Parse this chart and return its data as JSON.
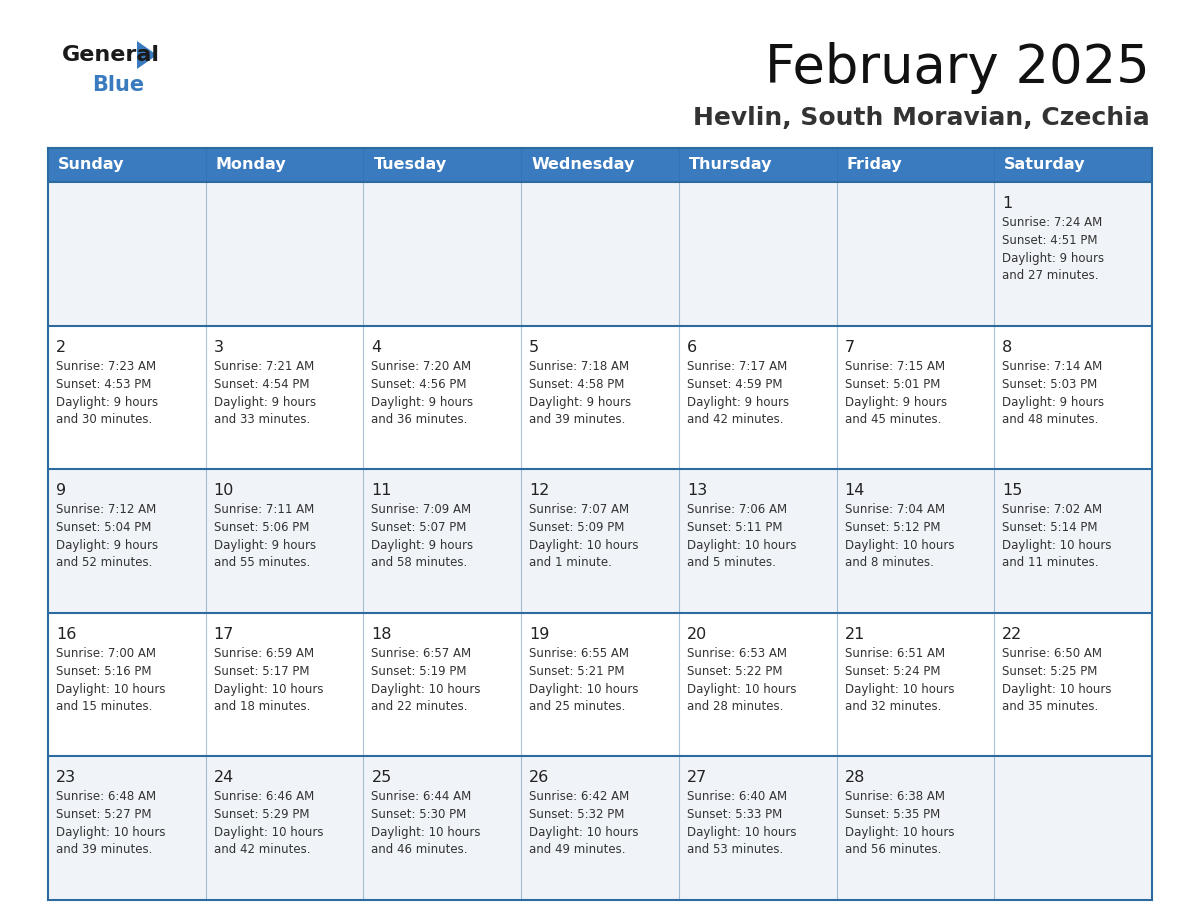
{
  "title": "February 2025",
  "subtitle": "Hevlin, South Moravian, Czechia",
  "days_of_week": [
    "Sunday",
    "Monday",
    "Tuesday",
    "Wednesday",
    "Thursday",
    "Friday",
    "Saturday"
  ],
  "header_bg": "#3a7bbf",
  "header_text": "#ffffff",
  "cell_bg_even": "#f0f4f8",
  "cell_bg_odd": "#ffffff",
  "border_color": "#2d6aa0",
  "text_color": "#333333",
  "calendar": [
    [
      null,
      null,
      null,
      null,
      null,
      null,
      {
        "day": "1",
        "sunrise": "7:24 AM",
        "sunset": "4:51 PM",
        "daylight": "9 hours\nand 27 minutes."
      }
    ],
    [
      {
        "day": "2",
        "sunrise": "7:23 AM",
        "sunset": "4:53 PM",
        "daylight": "9 hours\nand 30 minutes."
      },
      {
        "day": "3",
        "sunrise": "7:21 AM",
        "sunset": "4:54 PM",
        "daylight": "9 hours\nand 33 minutes."
      },
      {
        "day": "4",
        "sunrise": "7:20 AM",
        "sunset": "4:56 PM",
        "daylight": "9 hours\nand 36 minutes."
      },
      {
        "day": "5",
        "sunrise": "7:18 AM",
        "sunset": "4:58 PM",
        "daylight": "9 hours\nand 39 minutes."
      },
      {
        "day": "6",
        "sunrise": "7:17 AM",
        "sunset": "4:59 PM",
        "daylight": "9 hours\nand 42 minutes."
      },
      {
        "day": "7",
        "sunrise": "7:15 AM",
        "sunset": "5:01 PM",
        "daylight": "9 hours\nand 45 minutes."
      },
      {
        "day": "8",
        "sunrise": "7:14 AM",
        "sunset": "5:03 PM",
        "daylight": "9 hours\nand 48 minutes."
      }
    ],
    [
      {
        "day": "9",
        "sunrise": "7:12 AM",
        "sunset": "5:04 PM",
        "daylight": "9 hours\nand 52 minutes."
      },
      {
        "day": "10",
        "sunrise": "7:11 AM",
        "sunset": "5:06 PM",
        "daylight": "9 hours\nand 55 minutes."
      },
      {
        "day": "11",
        "sunrise": "7:09 AM",
        "sunset": "5:07 PM",
        "daylight": "9 hours\nand 58 minutes."
      },
      {
        "day": "12",
        "sunrise": "7:07 AM",
        "sunset": "5:09 PM",
        "daylight": "10 hours\nand 1 minute."
      },
      {
        "day": "13",
        "sunrise": "7:06 AM",
        "sunset": "5:11 PM",
        "daylight": "10 hours\nand 5 minutes."
      },
      {
        "day": "14",
        "sunrise": "7:04 AM",
        "sunset": "5:12 PM",
        "daylight": "10 hours\nand 8 minutes."
      },
      {
        "day": "15",
        "sunrise": "7:02 AM",
        "sunset": "5:14 PM",
        "daylight": "10 hours\nand 11 minutes."
      }
    ],
    [
      {
        "day": "16",
        "sunrise": "7:00 AM",
        "sunset": "5:16 PM",
        "daylight": "10 hours\nand 15 minutes."
      },
      {
        "day": "17",
        "sunrise": "6:59 AM",
        "sunset": "5:17 PM",
        "daylight": "10 hours\nand 18 minutes."
      },
      {
        "day": "18",
        "sunrise": "6:57 AM",
        "sunset": "5:19 PM",
        "daylight": "10 hours\nand 22 minutes."
      },
      {
        "day": "19",
        "sunrise": "6:55 AM",
        "sunset": "5:21 PM",
        "daylight": "10 hours\nand 25 minutes."
      },
      {
        "day": "20",
        "sunrise": "6:53 AM",
        "sunset": "5:22 PM",
        "daylight": "10 hours\nand 28 minutes."
      },
      {
        "day": "21",
        "sunrise": "6:51 AM",
        "sunset": "5:24 PM",
        "daylight": "10 hours\nand 32 minutes."
      },
      {
        "day": "22",
        "sunrise": "6:50 AM",
        "sunset": "5:25 PM",
        "daylight": "10 hours\nand 35 minutes."
      }
    ],
    [
      {
        "day": "23",
        "sunrise": "6:48 AM",
        "sunset": "5:27 PM",
        "daylight": "10 hours\nand 39 minutes."
      },
      {
        "day": "24",
        "sunrise": "6:46 AM",
        "sunset": "5:29 PM",
        "daylight": "10 hours\nand 42 minutes."
      },
      {
        "day": "25",
        "sunrise": "6:44 AM",
        "sunset": "5:30 PM",
        "daylight": "10 hours\nand 46 minutes."
      },
      {
        "day": "26",
        "sunrise": "6:42 AM",
        "sunset": "5:32 PM",
        "daylight": "10 hours\nand 49 minutes."
      },
      {
        "day": "27",
        "sunrise": "6:40 AM",
        "sunset": "5:33 PM",
        "daylight": "10 hours\nand 53 minutes."
      },
      {
        "day": "28",
        "sunrise": "6:38 AM",
        "sunset": "5:35 PM",
        "daylight": "10 hours\nand 56 minutes."
      },
      null
    ]
  ],
  "logo_general_color": "#1a1a1a",
  "logo_blue_color": "#3a7bbf",
  "logo_triangle_color": "#3a7bbf"
}
